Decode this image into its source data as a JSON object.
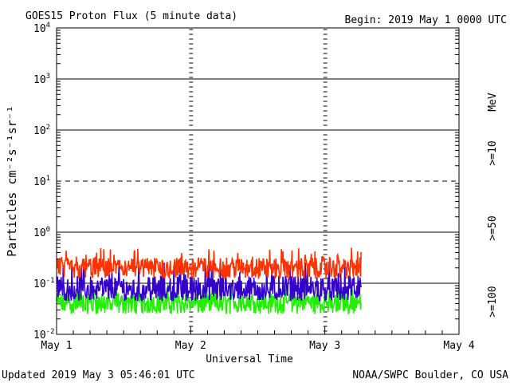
{
  "header": {
    "title": "GOES15 Proton Flux (5 minute data)",
    "begin": "Begin: 2019 May 1 0000 UTC"
  },
  "footer": {
    "updated": "Updated 2019 May  3 05:46:01 UTC",
    "credit": "NOAA/SWPC Boulder, CO USA"
  },
  "legend": {
    "unit": "MeV",
    "items": [
      {
        "label": ">=10",
        "color": "#ff3300"
      },
      {
        "label": ">=50",
        "color": "#3300cc"
      },
      {
        "label": ">=100",
        "color": "#22ee00"
      }
    ]
  },
  "chart_data": {
    "type": "line",
    "title": "GOES15 Proton Flux (5 minute data)",
    "xlabel": "Universal Time",
    "ylabel": "Particles cm⁻²s⁻¹sr⁻¹",
    "y_scale": "log",
    "ylim": [
      0.01,
      10000
    ],
    "y_ticks": [
      {
        "base": "10",
        "exp": "-2"
      },
      {
        "base": "10",
        "exp": "-1"
      },
      {
        "base": "10",
        "exp": "0"
      },
      {
        "base": "10",
        "exp": "1"
      },
      {
        "base": "10",
        "exp": "2"
      },
      {
        "base": "10",
        "exp": "3"
      },
      {
        "base": "10",
        "exp": "4"
      }
    ],
    "x_ticks": [
      "May 1",
      "May 2",
      "May 3",
      "May 4"
    ],
    "xlim_days": [
      0,
      3
    ],
    "data_end_day": 2.27,
    "series": [
      {
        "name": ">=10",
        "color": "#ff3300",
        "y_min": 0.12,
        "y_max": 0.5,
        "typical": 0.2
      },
      {
        "name": ">=50",
        "color": "#3300cc",
        "y_min": 0.045,
        "y_max": 0.28,
        "typical": 0.07
      },
      {
        "name": ">=100",
        "color": "#22ee00",
        "y_min": 0.025,
        "y_max": 0.1,
        "typical": 0.04
      }
    ]
  }
}
